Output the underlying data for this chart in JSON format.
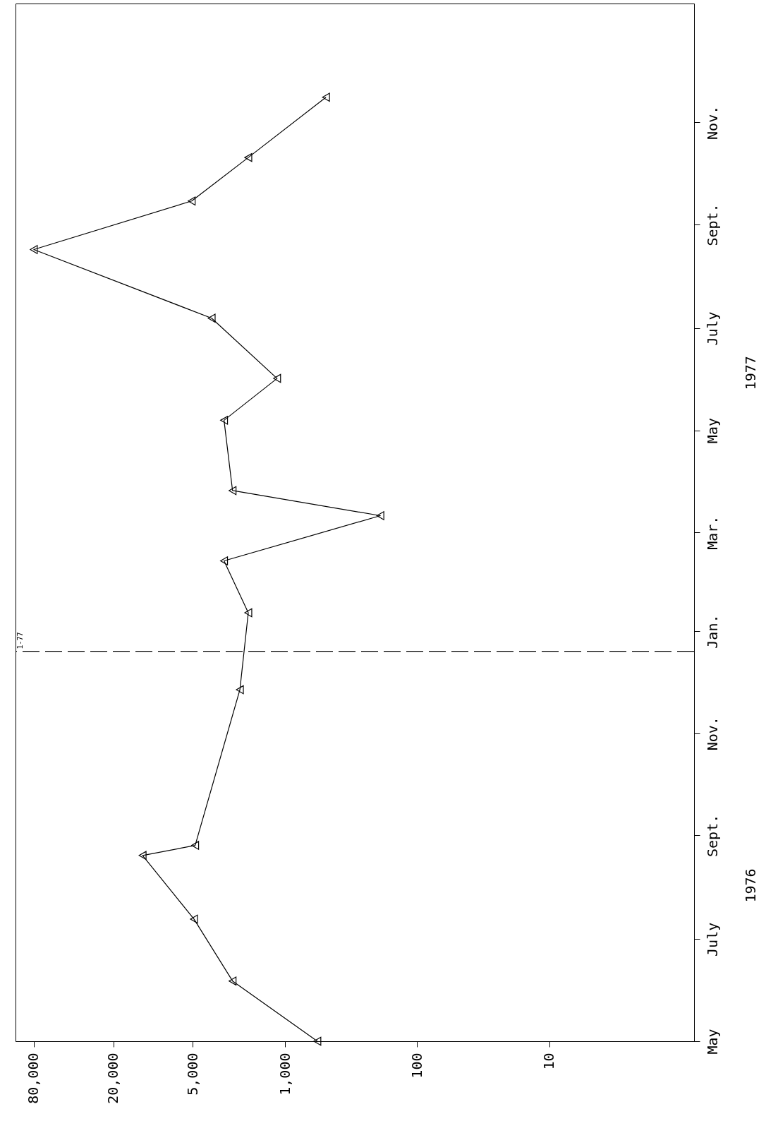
{
  "chart_data": {
    "type": "line",
    "orientation": "horizontal",
    "x": [
      "1976-05-01",
      "1976-06-06",
      "1976-07-13",
      "1976-08-20",
      "1976-08-26",
      "1976-11-27",
      "1977-01-12",
      "1977-02-12",
      "1977-03-11",
      "1977-03-26",
      "1977-05-07",
      "1977-06-01",
      "1977-07-07",
      "1977-08-17",
      "1977-09-15",
      "1977-10-11",
      "1977-11-16"
    ],
    "series": [
      {
        "color": "#000000",
        "values": [
          570,
          2500,
          4900,
          12000,
          4800,
          2200,
          1900,
          2900,
          190,
          2500,
          2900,
          1150,
          3600,
          80000,
          5100,
          1900,
          490
        ]
      }
    ],
    "ylim": [
      "1976-05-01",
      "1978-01-11"
    ],
    "yticks": [
      {
        "value": "1976-05-01",
        "label": "May"
      },
      {
        "value": "1976-07-01",
        "label": "July"
      },
      {
        "value": "1976-09-01",
        "label": "Sept."
      },
      {
        "value": "1976-11-01",
        "label": "Nov."
      },
      {
        "value": "1977-01-01",
        "label": "Jan."
      },
      {
        "value": "1977-03-01",
        "label": "Mar."
      },
      {
        "value": "1977-05-01",
        "label": "May"
      },
      {
        "value": "1977-07-01",
        "label": "July"
      },
      {
        "value": "1977-09-01",
        "label": "Sept."
      },
      {
        "value": "1977-11-01",
        "label": "Nov."
      }
    ],
    "xlim": [
      110000,
      0.8
    ],
    "xticks": [
      {
        "value": 80000,
        "label": "80,000"
      },
      {
        "value": 20000,
        "label": "20,000"
      },
      {
        "value": 5000,
        "label": "5,000"
      },
      {
        "value": 1000,
        "label": "1,000"
      },
      100,
      10
    ],
    "log": "x",
    "grid": false,
    "marker": "triangle",
    "line_style": "solid",
    "ref_lines": [
      {
        "axis": "y",
        "value": "1976-12-20",
        "label": "1-77",
        "line_style": "dashed"
      }
    ],
    "annotations": [
      "1976",
      "1977"
    ]
  }
}
